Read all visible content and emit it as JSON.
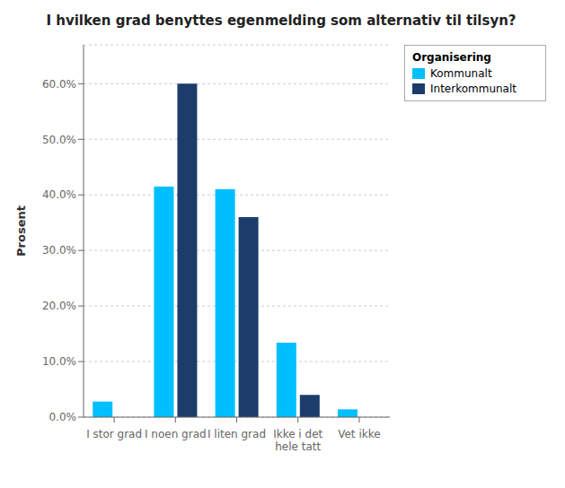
{
  "chart_data": {
    "type": "bar",
    "title": "I hvilken grad benyttes egenmelding som alternativ til tilsyn?",
    "ylabel": "Prosent",
    "categories": [
      "I stor grad",
      "I noen grad",
      "I liten grad",
      "Ikke i det\nhele tatt",
      "Vet ikke"
    ],
    "series": [
      {
        "name": "Kommunalt",
        "color": "#00BFFF",
        "values": [
          2.8,
          41.5,
          41.0,
          13.4,
          1.4
        ]
      },
      {
        "name": "Interkommunalt",
        "color": "#1C3D6B",
        "values": [
          0.0,
          60.0,
          36.0,
          4.0,
          0.0
        ]
      }
    ],
    "legend_title": "Organisering",
    "legend": "right",
    "ylim": [
      0,
      67
    ],
    "yticks": [
      {
        "value": 0,
        "label": "0.0%"
      },
      {
        "value": 10,
        "label": "10.0%"
      },
      {
        "value": 20,
        "label": "20.0%"
      },
      {
        "value": 30,
        "label": "30.0%"
      },
      {
        "value": 40,
        "label": "40.0%"
      },
      {
        "value": 50,
        "label": "50.0%"
      },
      {
        "value": 60,
        "label": "60.0%"
      }
    ],
    "grid": true
  }
}
